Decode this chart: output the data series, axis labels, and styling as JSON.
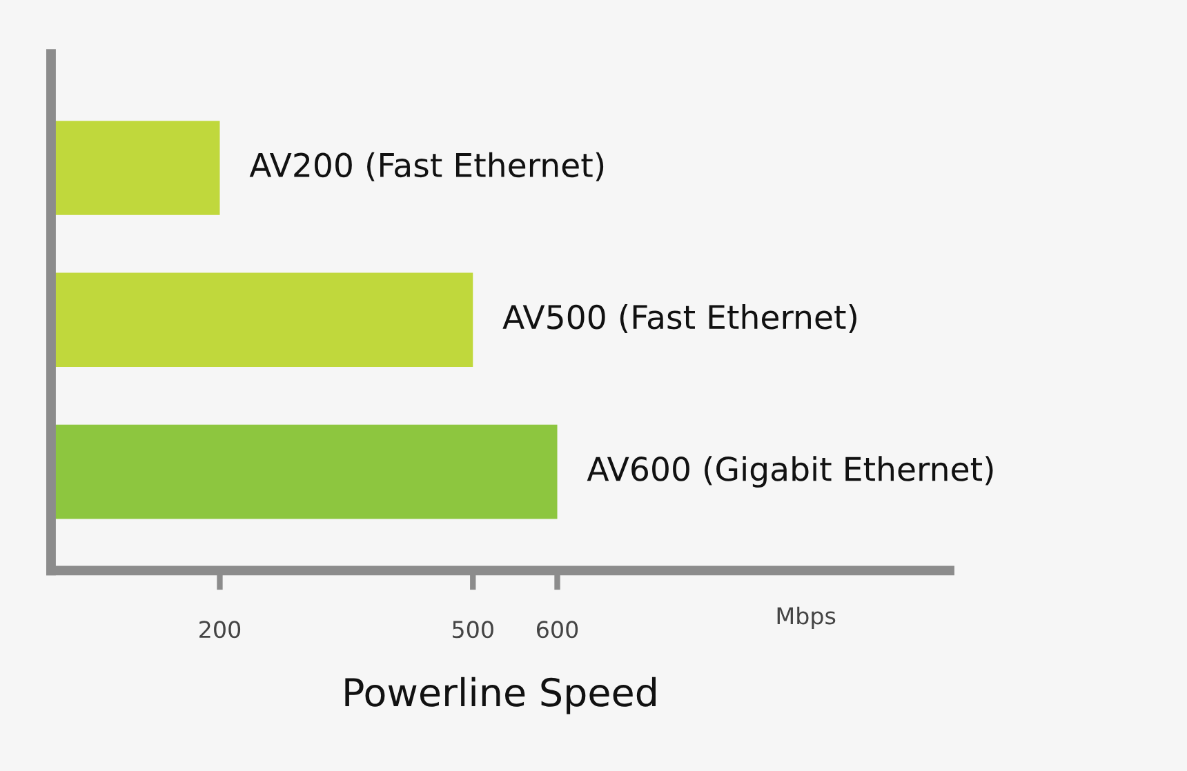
{
  "chart_data": {
    "type": "bar",
    "orientation": "horizontal",
    "categories": [
      "AV200 (Fast Ethernet)",
      "AV500 (Fast Ethernet)",
      "AV600 (Gigabit Ethernet)"
    ],
    "values": [
      200,
      500,
      600
    ],
    "colors": [
      "#c0d83c",
      "#c0d83c",
      "#8dc63f"
    ],
    "xlim": [
      0,
      1065
    ],
    "xticks": [
      200,
      500,
      600
    ],
    "xlabel": "Powerline Speed",
    "annotations": [
      "Mbps"
    ],
    "grid": false,
    "legend": false
  }
}
